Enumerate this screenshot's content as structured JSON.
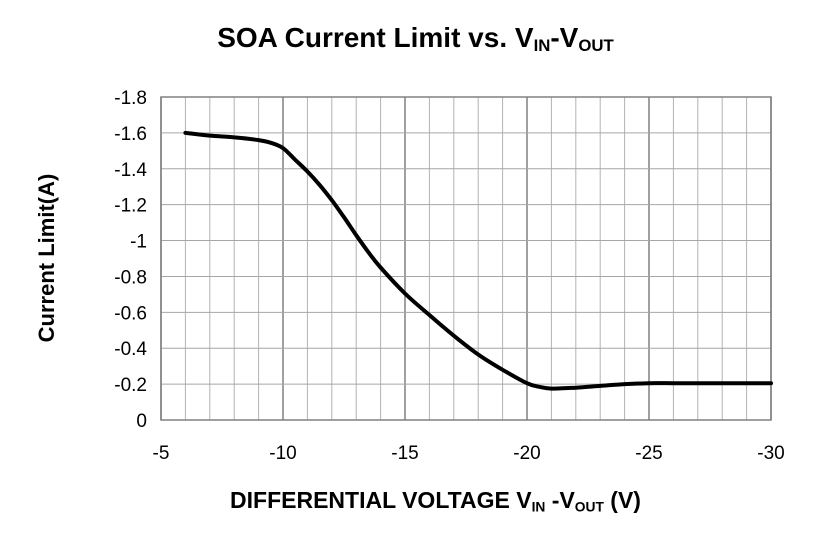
{
  "chart_data": {
    "type": "line",
    "title": {
      "main": "SOA Current Limit vs. V",
      "sub1": "IN",
      "sep": "-V",
      "sub2": "OUT"
    },
    "ylabel": "Current Limit(A)",
    "xlabel": {
      "main": "DIFFERENTIAL VOLTAGE V",
      "sub1": "IN",
      "sep": " -V",
      "sub2": "OUT",
      "tail": " (V)"
    },
    "xlim": [
      -5,
      -30
    ],
    "ylim": [
      0,
      -1.8
    ],
    "xticks": [
      -5,
      -10,
      -15,
      -20,
      -25,
      -30
    ],
    "xtick_labels": [
      "-5",
      "-10",
      "-15",
      "-20",
      "-25",
      "-30"
    ],
    "yticks": [
      0,
      -0.2,
      -0.4,
      -0.6,
      -0.8,
      -1,
      -1.2,
      -1.4,
      -1.6,
      -1.8
    ],
    "ytick_labels": [
      "0",
      "-0.2",
      "-0.4",
      "-0.6",
      "-0.8",
      "-1",
      "-1.2",
      "-1.4",
      "-1.6",
      "-1.8"
    ],
    "grid": true,
    "series": [
      {
        "color": "#000000",
        "x": [
          -6,
          -7,
          -8,
          -9,
          -9.5,
          -10,
          -10.5,
          -11,
          -11.5,
          -12,
          -12.5,
          -13,
          -13.5,
          -14,
          -15,
          -16,
          -17,
          -18,
          -19,
          -20,
          -20.5,
          -21,
          -22,
          -23,
          -24,
          -25,
          -26,
          -27,
          -28,
          -29,
          -30
        ],
        "y": [
          -1.6,
          -1.585,
          -1.575,
          -1.56,
          -1.545,
          -1.515,
          -1.45,
          -1.385,
          -1.31,
          -1.225,
          -1.13,
          -1.03,
          -0.935,
          -0.85,
          -0.705,
          -0.585,
          -0.47,
          -0.365,
          -0.28,
          -0.205,
          -0.185,
          -0.175,
          -0.18,
          -0.19,
          -0.2,
          -0.205,
          -0.205,
          -0.205,
          -0.205,
          -0.205,
          -0.205
        ]
      }
    ]
  }
}
